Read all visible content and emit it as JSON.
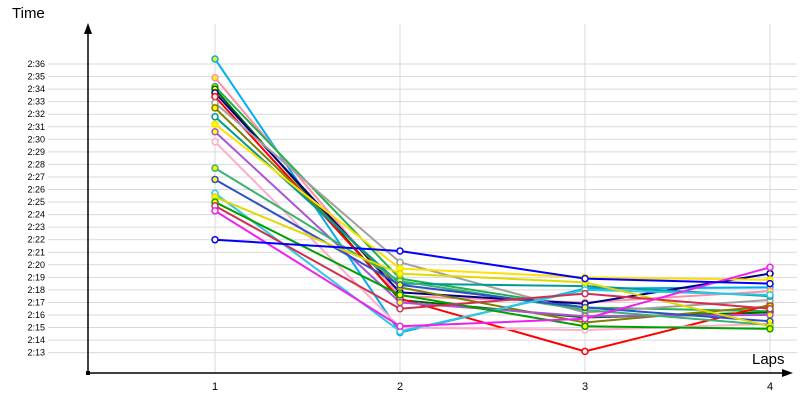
{
  "chart_data": {
    "type": "line",
    "title": "",
    "ylabel": "Time",
    "xlabel": "Laps",
    "x_ticks": [
      "1",
      "2",
      "3",
      "4"
    ],
    "y_ticks": [
      "2:36",
      "2:35",
      "2:34",
      "2:33",
      "2:32",
      "2:31",
      "2:30",
      "2:29",
      "2:28",
      "2:27",
      "2:26",
      "2:25",
      "2:24",
      "2:23",
      "2:22",
      "2:21",
      "2:20",
      "2:19",
      "2:18",
      "2:17",
      "2:16",
      "2:15",
      "2:14",
      "2:13"
    ],
    "ylim_seconds": [
      133,
      156
    ],
    "x_values": [
      1,
      2,
      3,
      4
    ],
    "grid": true,
    "legend": "none",
    "colors": {
      "grid": "#d9d9d9",
      "axis": "#000000",
      "background": "#ffffff"
    },
    "series": [
      {
        "id": "sky-blue",
        "color": "#00AEEF",
        "marker_fill": "#FFFF00",
        "lap_times_sec": [
          156.4,
          134.6,
          138.1,
          138.2
        ]
      },
      {
        "id": "salmon",
        "color": "#FF8FA8",
        "marker_fill": "#FFFF00",
        "lap_times_sec": [
          154.9,
          137.5,
          137.0,
          137.9
        ]
      },
      {
        "id": "green",
        "color": "#22B14C",
        "marker_fill": "#FFFF00",
        "lap_times_sec": [
          154.2,
          138.9,
          136.6,
          136.3
        ]
      },
      {
        "id": "dark-green",
        "color": "#006400",
        "marker_fill": "#FFFF00",
        "lap_times_sec": [
          154.0,
          137.2,
          135.8,
          136.2
        ]
      },
      {
        "id": "navy",
        "color": "#00008B",
        "marker_fill": "#FFFFFF",
        "lap_times_sec": [
          153.7,
          137.8,
          136.9,
          139.3
        ]
      },
      {
        "id": "red",
        "color": "#FF0000",
        "marker_fill": "#FFFFFF",
        "lap_times_sec": [
          153.4,
          137.3,
          133.1,
          136.8
        ]
      },
      {
        "id": "gray",
        "color": "#A0A0A0",
        "marker_fill": "#FFFFFF",
        "lap_times_sec": [
          152.9,
          140.2,
          136.2,
          137.2
        ]
      },
      {
        "id": "olive",
        "color": "#7F7F00",
        "marker_fill": "#FFFF00",
        "lap_times_sec": [
          152.5,
          138.2,
          135.4,
          136.7
        ]
      },
      {
        "id": "teal",
        "color": "#009999",
        "marker_fill": "#FFFFFF",
        "lap_times_sec": [
          151.8,
          138.5,
          138.3,
          137.5
        ]
      },
      {
        "id": "yellow",
        "color": "#FFE000",
        "marker_fill": "#FFFF00",
        "lap_times_sec": [
          151.2,
          139.7,
          139.0,
          138.8
        ]
      },
      {
        "id": "violet",
        "color": "#A855D8",
        "marker_fill": "#FFFF00",
        "lap_times_sec": [
          150.6,
          137.0,
          135.9,
          136.0
        ]
      },
      {
        "id": "light-pink",
        "color": "#FFAEC9",
        "marker_fill": "#FFFFFF",
        "lap_times_sec": [
          149.8,
          135.0,
          134.8,
          135.3
        ]
      },
      {
        "id": "green-2",
        "color": "#3CB371",
        "marker_fill": "#FFFF00",
        "lap_times_sec": [
          147.7,
          138.7,
          136.4,
          135.2
        ]
      },
      {
        "id": "blue-2",
        "color": "#3050C8",
        "marker_fill": "#FFFF00",
        "lap_times_sec": [
          146.8,
          138.4,
          136.6,
          135.5
        ]
      },
      {
        "id": "cyan",
        "color": "#30C8E0",
        "marker_fill": "#FFFFFF",
        "lap_times_sec": [
          145.7,
          134.7,
          138.0,
          137.6
        ]
      },
      {
        "id": "yellow-2",
        "color": "#E0D800",
        "marker_fill": "#FFFF00",
        "lap_times_sec": [
          145.4,
          139.3,
          138.6,
          135.1
        ]
      },
      {
        "id": "green-3",
        "color": "#00A000",
        "marker_fill": "#FFFF00",
        "lap_times_sec": [
          145.0,
          137.6,
          135.1,
          134.9
        ]
      },
      {
        "id": "red-2",
        "color": "#D03050",
        "marker_fill": "#FFFFFF",
        "lap_times_sec": [
          144.7,
          136.5,
          137.7,
          136.5
        ]
      },
      {
        "id": "magenta",
        "color": "#F020F0",
        "marker_fill": "#FFFFFF",
        "lap_times_sec": [
          144.3,
          135.1,
          135.7,
          139.8
        ]
      },
      {
        "id": "blue-3",
        "color": "#0000FF",
        "marker_fill": "#FFFFFF",
        "lap_times_sec": [
          142.0,
          141.1,
          138.9,
          138.5
        ]
      }
    ]
  }
}
